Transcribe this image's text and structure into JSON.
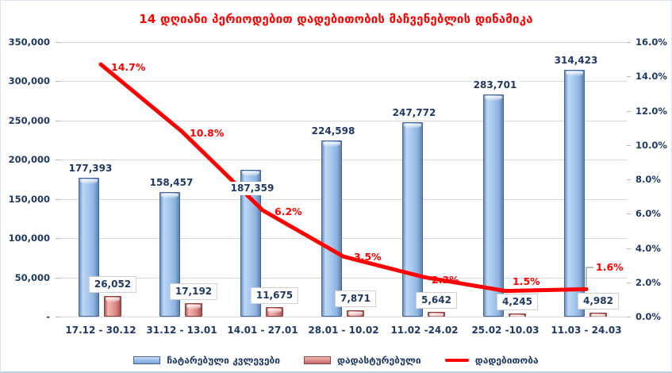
{
  "chart_data": {
    "type": "bar",
    "combo_with_line": true,
    "title": "14 დღიანი პერიოდებით დადებითობის მაჩვენებლის დინამიკა",
    "title_color": "#FF0000",
    "categories": [
      "17.12 - 30.12",
      "31.12 - 13.01",
      "14.01 - 27.01",
      "28.01 - 10.02",
      "11.02 -24.02",
      "25.02 -10.03",
      "11.03 - 24.03"
    ],
    "series": [
      {
        "name": "ჩატარებული კვლევები",
        "kind": "bar",
        "axis": "left",
        "color": "#9DC3E6",
        "values": [
          177393,
          158457,
          187359,
          224598,
          247772,
          283701,
          314423
        ],
        "labels": [
          "177,393",
          "158,457",
          "187,359",
          "224,598",
          "247,772",
          "283,701",
          "314,423"
        ]
      },
      {
        "name": "დადასტურებული",
        "kind": "bar",
        "axis": "left",
        "color": "#E59694",
        "values": [
          26052,
          17192,
          11675,
          7871,
          5642,
          4245,
          4982
        ],
        "labels": [
          "26,052",
          "17,192",
          "11,675",
          "7,871",
          "5,642",
          "4,245",
          "4,982"
        ]
      },
      {
        "name": "დადებითობა",
        "kind": "line",
        "axis": "right",
        "color": "#FF0000",
        "values": [
          14.7,
          10.8,
          6.2,
          3.5,
          2.3,
          1.5,
          1.6
        ],
        "labels": [
          "14.7%",
          "10.8%",
          "6.2%",
          "3.5%",
          "2.3%",
          "1.5%",
          "1.6%"
        ]
      }
    ],
    "left_axis": {
      "min": 0,
      "max": 350000,
      "step": 50000,
      "tick_labels": [
        "350,000",
        "300,000",
        "250,000",
        "200,000",
        "150,000",
        "100,000",
        "50,000",
        "-"
      ]
    },
    "right_axis": {
      "min": 0,
      "max": 16,
      "step": 2,
      "tick_labels": [
        "16.0%",
        "14.0%",
        "12.0%",
        "10.0%",
        "8.0%",
        "6.0%",
        "4.0%",
        "2.0%",
        "0.0%"
      ]
    },
    "legend": [
      {
        "swatch": "bar-blue",
        "label": "ჩატარებული კვლევები"
      },
      {
        "swatch": "bar-red",
        "label": "დადასტურებული"
      },
      {
        "swatch": "line-red",
        "label": "დადებითობა"
      }
    ],
    "grid": true,
    "legend_position": "bottom",
    "colors": {
      "label_text": "#1F3864",
      "gridline": "#D9D9D9",
      "line": "#FF0000",
      "bar_blue": "#9DC3E6",
      "bar_red": "#E59694"
    }
  }
}
